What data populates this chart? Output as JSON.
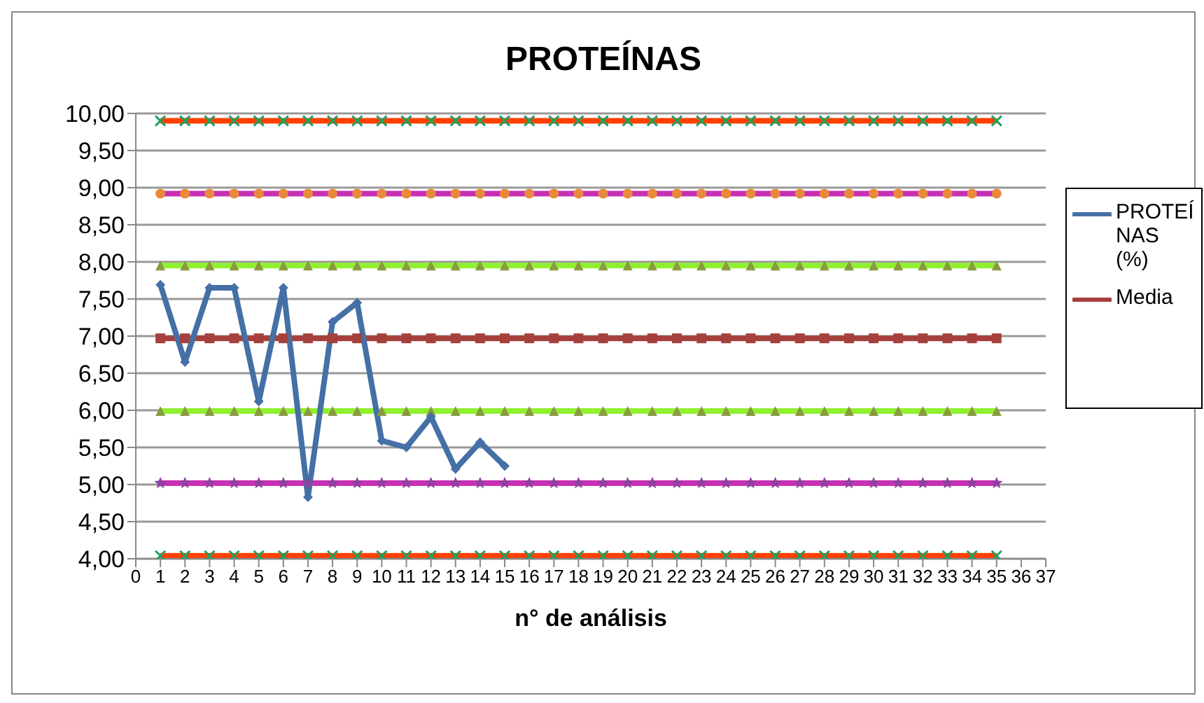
{
  "chart_data": {
    "type": "line",
    "title": "PROTEÍNAS",
    "xlabel": "n° de análisis",
    "x": [
      1,
      2,
      3,
      4,
      5,
      6,
      7,
      8,
      9,
      10,
      11,
      12,
      13,
      14,
      15,
      16,
      17,
      18,
      19,
      20,
      21,
      22,
      23,
      24,
      25,
      26,
      27,
      28,
      29,
      30,
      31,
      32,
      33,
      34,
      35
    ],
    "series": [
      {
        "name": "PROTEÍNAS (%)",
        "color": "#4470a6",
        "marker": "diamond",
        "values": [
          7.69,
          6.65,
          7.65,
          7.65,
          6.12,
          7.65,
          4.83,
          7.19,
          7.45,
          5.59,
          5.5,
          5.91,
          5.21,
          5.57,
          5.25,
          null,
          null,
          null,
          null,
          null,
          null,
          null,
          null,
          null,
          null,
          null,
          null,
          null,
          null,
          null,
          null,
          null,
          null,
          null,
          null
        ]
      },
      {
        "name": "Media",
        "color": "#a6403c",
        "marker": "square",
        "values": [
          6.97,
          6.97,
          6.97,
          6.97,
          6.97,
          6.97,
          6.97,
          6.97,
          6.97,
          6.97,
          6.97,
          6.97,
          6.97,
          6.97,
          6.97,
          6.97,
          6.97,
          6.97,
          6.97,
          6.97,
          6.97,
          6.97,
          6.97,
          6.97,
          6.97,
          6.97,
          6.97,
          6.97,
          6.97,
          6.97,
          6.97,
          6.97,
          6.97,
          6.97,
          6.97
        ]
      },
      {
        "color": "#ff4000",
        "marker": "cross",
        "values": [
          9.9,
          9.9,
          9.9,
          9.9,
          9.9,
          9.9,
          9.9,
          9.9,
          9.9,
          9.9,
          9.9,
          9.9,
          9.9,
          9.9,
          9.9,
          9.9,
          9.9,
          9.9,
          9.9,
          9.9,
          9.9,
          9.9,
          9.9,
          9.9,
          9.9,
          9.9,
          9.9,
          9.9,
          9.9,
          9.9,
          9.9,
          9.9,
          9.9,
          9.9,
          9.9
        ]
      },
      {
        "color": "#c830b4",
        "marker": "circle",
        "values": [
          8.92,
          8.92,
          8.92,
          8.92,
          8.92,
          8.92,
          8.92,
          8.92,
          8.92,
          8.92,
          8.92,
          8.92,
          8.92,
          8.92,
          8.92,
          8.92,
          8.92,
          8.92,
          8.92,
          8.92,
          8.92,
          8.92,
          8.92,
          8.92,
          8.92,
          8.92,
          8.92,
          8.92,
          8.92,
          8.92,
          8.92,
          8.92,
          8.92,
          8.92,
          8.92
        ]
      },
      {
        "color": "#90f030",
        "marker": "triangle",
        "values": [
          7.95,
          7.95,
          7.95,
          7.95,
          7.95,
          7.95,
          7.95,
          7.95,
          7.95,
          7.95,
          7.95,
          7.95,
          7.95,
          7.95,
          7.95,
          7.95,
          7.95,
          7.95,
          7.95,
          7.95,
          7.95,
          7.95,
          7.95,
          7.95,
          7.95,
          7.95,
          7.95,
          7.95,
          7.95,
          7.95,
          7.95,
          7.95,
          7.95,
          7.95,
          7.95
        ]
      },
      {
        "color": "#90f030",
        "marker": "triangle",
        "values": [
          5.99,
          5.99,
          5.99,
          5.99,
          5.99,
          5.99,
          5.99,
          5.99,
          5.99,
          5.99,
          5.99,
          5.99,
          5.99,
          5.99,
          5.99,
          5.99,
          5.99,
          5.99,
          5.99,
          5.99,
          5.99,
          5.99,
          5.99,
          5.99,
          5.99,
          5.99,
          5.99,
          5.99,
          5.99,
          5.99,
          5.99,
          5.99,
          5.99,
          5.99,
          5.99
        ]
      },
      {
        "color": "#c830b4",
        "marker": "star",
        "values": [
          5.02,
          5.02,
          5.02,
          5.02,
          5.02,
          5.02,
          5.02,
          5.02,
          5.02,
          5.02,
          5.02,
          5.02,
          5.02,
          5.02,
          5.02,
          5.02,
          5.02,
          5.02,
          5.02,
          5.02,
          5.02,
          5.02,
          5.02,
          5.02,
          5.02,
          5.02,
          5.02,
          5.02,
          5.02,
          5.02,
          5.02,
          5.02,
          5.02,
          5.02,
          5.02
        ]
      },
      {
        "color": "#ff4000",
        "marker": "cross",
        "values": [
          4.04,
          4.04,
          4.04,
          4.04,
          4.04,
          4.04,
          4.04,
          4.04,
          4.04,
          4.04,
          4.04,
          4.04,
          4.04,
          4.04,
          4.04,
          4.04,
          4.04,
          4.04,
          4.04,
          4.04,
          4.04,
          4.04,
          4.04,
          4.04,
          4.04,
          4.04,
          4.04,
          4.04,
          4.04,
          4.04,
          4.04,
          4.04,
          4.04,
          4.04,
          4.04
        ]
      }
    ],
    "xlim": [
      0,
      37
    ],
    "xticks": [
      0,
      1,
      2,
      3,
      4,
      5,
      6,
      7,
      8,
      9,
      10,
      11,
      12,
      13,
      14,
      15,
      16,
      17,
      18,
      19,
      20,
      21,
      22,
      23,
      24,
      25,
      26,
      27,
      28,
      29,
      30,
      31,
      32,
      33,
      34,
      35,
      36,
      37
    ],
    "ylim": [
      4,
      10
    ],
    "yticks": [
      {
        "value": 4,
        "label": "4,00"
      },
      {
        "value": 4.5,
        "label": "4,50"
      },
      {
        "value": 5,
        "label": "5,00"
      },
      {
        "value": 5.5,
        "label": "5,50"
      },
      {
        "value": 6,
        "label": "6,00"
      },
      {
        "value": 6.5,
        "label": "6,50"
      },
      {
        "value": 7,
        "label": "7,00"
      },
      {
        "value": 7.5,
        "label": "7,50"
      },
      {
        "value": 8,
        "label": "8,00"
      },
      {
        "value": 8.5,
        "label": "8,50"
      },
      {
        "value": 9,
        "label": "9,00"
      },
      {
        "value": 9.5,
        "label": "9,50"
      },
      {
        "value": 10,
        "label": "10,00"
      }
    ],
    "grid": "y",
    "legend": "right",
    "line_style": "solid"
  }
}
